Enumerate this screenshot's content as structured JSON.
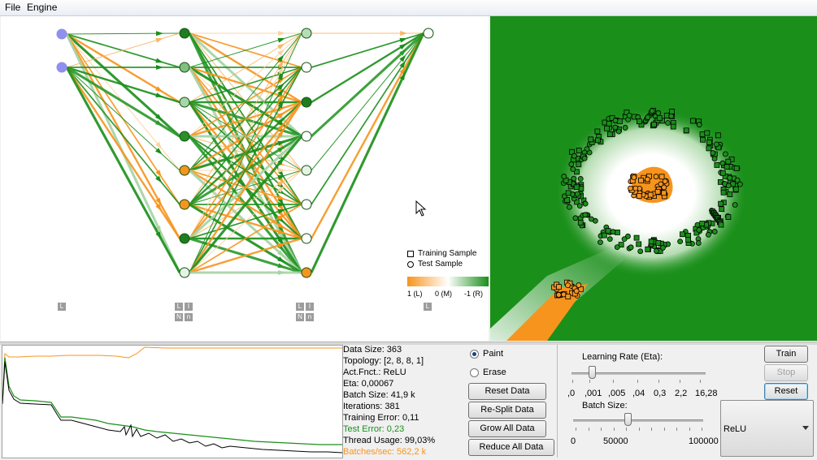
{
  "menu": {
    "file": "File",
    "engine": "Engine"
  },
  "legend": {
    "training_sample": "Training Sample",
    "test_sample": "Test Sample",
    "colorbar_left": "1 (L)",
    "colorbar_mid": "0 (M)",
    "colorbar_right": "-1 (R)"
  },
  "layer_tags": {
    "input": "L",
    "hidden1": [
      "L",
      "I",
      "N",
      "n"
    ],
    "hidden2": [
      "L",
      "I",
      "N",
      "n"
    ],
    "output": "L"
  },
  "stats": {
    "data_size": "Data Size: 363",
    "topology": "Topology: [2, 8, 8, 1]",
    "act_fnct": "Act.Fnct.: ReLU",
    "eta": "Eta: 0,00067",
    "batch_size": "Batch Size: 41,9 k",
    "iterations": "Iterations: 381",
    "training_error": "Training Error: 0,11",
    "test_error": "Test Error: 0,23",
    "thread_usage": "Thread Usage: 99,03%",
    "batches_sec": "Batches/sec: 562,2 k"
  },
  "mode": {
    "paint": "Paint",
    "erase": "Erase",
    "selected": "Paint"
  },
  "buttons": {
    "reset_data": "Reset Data",
    "resplit_data": "Re-Split Data",
    "grow_all_data": "Grow All Data",
    "reduce_all_data": "Reduce All Data",
    "train": "Train",
    "stop": "Stop",
    "reset": "Reset"
  },
  "learning_rate": {
    "label": "Learning Rate (Eta):",
    "ticks": [
      ",0",
      ",001",
      ",005",
      ",04",
      "0,3",
      "2,2",
      "16,28"
    ]
  },
  "batch_size": {
    "label": "Batch Size:",
    "ticks": [
      "0",
      "50000",
      "100000"
    ]
  },
  "activation": {
    "selected": "ReLU"
  },
  "colors": {
    "orange": "#f7941d",
    "green": "#1a8f1a",
    "dark_green": "#15801a",
    "input_node": "#8f8fef"
  }
}
